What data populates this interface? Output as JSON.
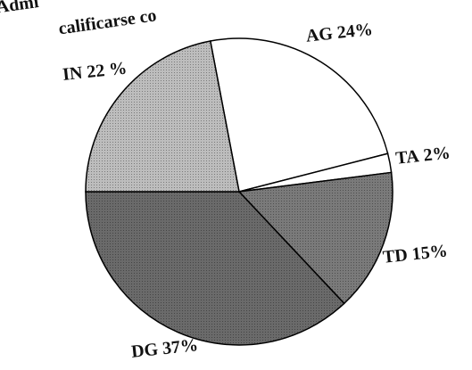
{
  "chart_data": {
    "type": "pie",
    "title": [
      "Admi",
      "calificarse co"
    ],
    "categories": [
      "AG",
      "TA",
      "TD",
      "DG",
      "IN"
    ],
    "values": [
      24,
      2,
      15,
      37,
      22
    ],
    "value_labels": [
      "24%",
      "2%",
      "15%",
      "37%",
      "22 %"
    ],
    "colors": [
      "#ffffff",
      "#ffffff",
      "#7a7a7a",
      "#6a6a6a",
      "#bdbdbd"
    ]
  }
}
